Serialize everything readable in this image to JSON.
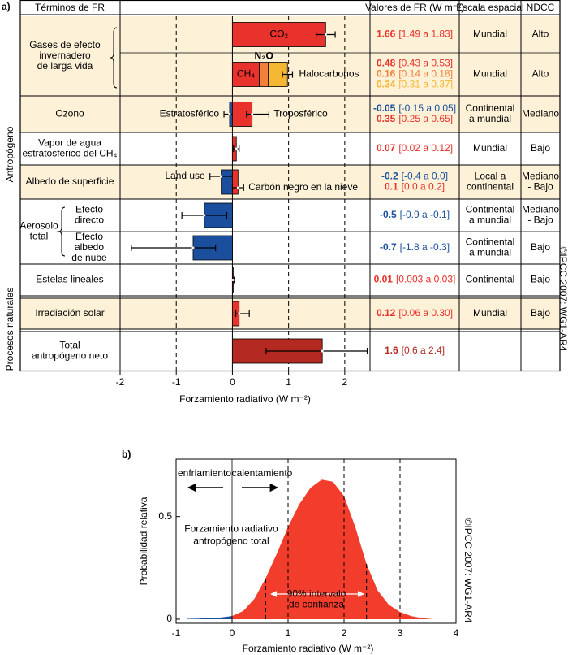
{
  "chart_data": [
    {
      "type": "bar",
      "orientation": "horizontal",
      "panel_label": "a)",
      "column_headers": [
        "Términos de FR",
        "Valores de FR (W m⁻²)",
        "Escala espacial",
        "NDCC"
      ],
      "side_labels": [
        "Antropógeno",
        "Procesos naturales"
      ],
      "xlabel": "Forzamiento radiativo (W m⁻²)",
      "xlim": [
        -2,
        2.45
      ],
      "xticks": [
        -2,
        -1,
        0,
        1,
        2
      ],
      "copyright": "©IPCC 2007: WG1-AR4",
      "rows": [
        {
          "label": [
            "Gases de efecto",
            "invernadero",
            "de larga vida"
          ],
          "subrows": [
            {
              "scale": [
                "Mundial"
              ],
              "ndcc": [
                "Alto"
              ],
              "bars": [
                {
                  "name": "CO₂",
                  "value": 1.66,
                  "low": 1.49,
                  "high": 1.83,
                  "range_label": "[1.49 a 1.83]",
                  "color": "#e8322b"
                }
              ]
            },
            {
              "scale": [
                "Mundial"
              ],
              "ndcc": [
                "Alto"
              ],
              "stacked": true,
              "stack_low": 0.89,
              "stack_high": 1.07,
              "bars": [
                {
                  "name": "CH₄",
                  "value": 0.48,
                  "range_label": "[0.43 a 0.53]",
                  "color": "#e8322b"
                },
                {
                  "name": "N₂O",
                  "value": 0.16,
                  "range_label": "[0.14 a 0.18]",
                  "color": "#f0803a"
                },
                {
                  "name": "Halocarbonos",
                  "value": 0.34,
                  "range_label": "[0.31 a 0.37]",
                  "color": "#f4b633"
                }
              ]
            }
          ]
        },
        {
          "label": [
            "Ozono"
          ],
          "subrows": [
            {
              "scale": [
                "Continental",
                "a mundial"
              ],
              "ndcc": [
                "Mediano"
              ],
              "bars": [
                {
                  "name": "Estratosférico",
                  "value": -0.05,
                  "low": -0.15,
                  "high": 0.05,
                  "range_label": "[-0.15 a 0.05]",
                  "color": "#1b4f9e"
                },
                {
                  "name": "Troposférico",
                  "value": 0.35,
                  "low": 0.25,
                  "high": 0.65,
                  "range_label": "[0.25 a 0.65]",
                  "color": "#e8322b"
                }
              ]
            }
          ]
        },
        {
          "label": [
            "Vapor de agua",
            "estratosférico del CH₄"
          ],
          "subrows": [
            {
              "scale": [
                "Mundial"
              ],
              "ndcc": [
                "Bajo"
              ],
              "bars": [
                {
                  "value": 0.07,
                  "low": 0.02,
                  "high": 0.12,
                  "range_label": "[0.02 a 0.12]",
                  "color": "#e8322b"
                }
              ]
            }
          ]
        },
        {
          "label": [
            "Albedo de superficie"
          ],
          "subrows": [
            {
              "scale": [
                "Local a",
                "continental"
              ],
              "ndcc": [
                "Mediano",
                "- Bajo"
              ],
              "bars": [
                {
                  "name": "Land use",
                  "value": -0.2,
                  "low": -0.4,
                  "high": 0.0,
                  "range_label": "[-0.4 a 0.0]",
                  "color": "#1b4f9e"
                },
                {
                  "name": "Carbón negro en la nieve",
                  "value": 0.1,
                  "low": 0.0,
                  "high": 0.2,
                  "range_label": "[0.0 a 0.2]",
                  "color": "#e8322b"
                }
              ]
            }
          ]
        },
        {
          "label": [
            "Aerosolo",
            "total"
          ],
          "subrows": [
            {
              "label": [
                "Efecto",
                "directo"
              ],
              "scale": [
                "Continental",
                "a mundial"
              ],
              "ndcc": [
                "Mediano",
                "- Bajo"
              ],
              "bars": [
                {
                  "value": -0.5,
                  "low": -0.9,
                  "high": -0.1,
                  "range_label": "[-0.9 a -0.1]",
                  "color": "#1b4f9e"
                }
              ]
            },
            {
              "label": [
                "Efecto",
                "albedo",
                "de nube"
              ],
              "scale": [
                "Continental",
                "a mundial"
              ],
              "ndcc": [
                "Bajo"
              ],
              "bars": [
                {
                  "value": -0.7,
                  "low": -1.8,
                  "high": -0.3,
                  "range_label": "[-1.8 a -0.3]",
                  "color": "#1b4f9e"
                }
              ]
            }
          ]
        },
        {
          "label": [
            "Estelas lineales"
          ],
          "subrows": [
            {
              "scale": [
                "Continental"
              ],
              "ndcc": [
                "Bajo"
              ],
              "bars": [
                {
                  "value": 0.01,
                  "low": 0.003,
                  "high": 0.03,
                  "range_label": "[0.003 a 0.03]",
                  "color": "#e8322b"
                }
              ]
            }
          ]
        },
        {
          "label": [
            "Irradiación solar"
          ],
          "subrows": [
            {
              "scale": [
                "Mundial"
              ],
              "ndcc": [
                "Bajo"
              ],
              "bars": [
                {
                  "value": 0.12,
                  "low": 0.06,
                  "high": 0.3,
                  "range_label": "[0.06 a 0.30]",
                  "color": "#e8322b"
                }
              ]
            }
          ]
        },
        {
          "label": [
            "Total",
            "antropógeno neto"
          ],
          "subrows": [
            {
              "bars": [
                {
                  "value": 1.6,
                  "low": 0.6,
                  "high": 2.4,
                  "range_label": "[0.6 a 2.4]",
                  "color": "#b42a22"
                }
              ]
            }
          ]
        }
      ]
    },
    {
      "type": "area",
      "panel_label": "b)",
      "xlabel": "Forzamiento radiativo (W m⁻²)",
      "ylabel": "Probabilidad relativa",
      "xlim": [
        -1,
        4
      ],
      "ylim": [
        -0.02,
        0.78
      ],
      "xticks": [
        -1,
        0,
        1,
        2,
        3,
        4
      ],
      "yticks": [
        0,
        0.5
      ],
      "x": [
        -0.8,
        -0.6,
        -0.4,
        -0.2,
        0,
        0.2,
        0.4,
        0.6,
        0.8,
        1.0,
        1.2,
        1.4,
        1.6,
        1.8,
        2.0,
        2.2,
        2.4,
        2.6,
        2.8,
        3.0,
        3.2,
        3.4,
        3.6
      ],
      "values": [
        0.002,
        0.003,
        0.005,
        0.008,
        0.015,
        0.04,
        0.1,
        0.2,
        0.32,
        0.45,
        0.56,
        0.64,
        0.68,
        0.67,
        0.6,
        0.45,
        0.27,
        0.14,
        0.07,
        0.035,
        0.015,
        0.005,
        0
      ],
      "color": "#f23d2c",
      "negative_color": "#1b4f9e",
      "confidence_interval": [
        0.6,
        2.4
      ],
      "annotations": {
        "cooling": "enfriamiento",
        "warming": "calentamiento",
        "curve_label": [
          "Forzamiento radiativo",
          "antropógeno total"
        ],
        "interval_label": [
          "90% intervalo",
          "de confianza"
        ]
      },
      "copyright": "©IPCC 2007: WG1-AR4"
    }
  ]
}
